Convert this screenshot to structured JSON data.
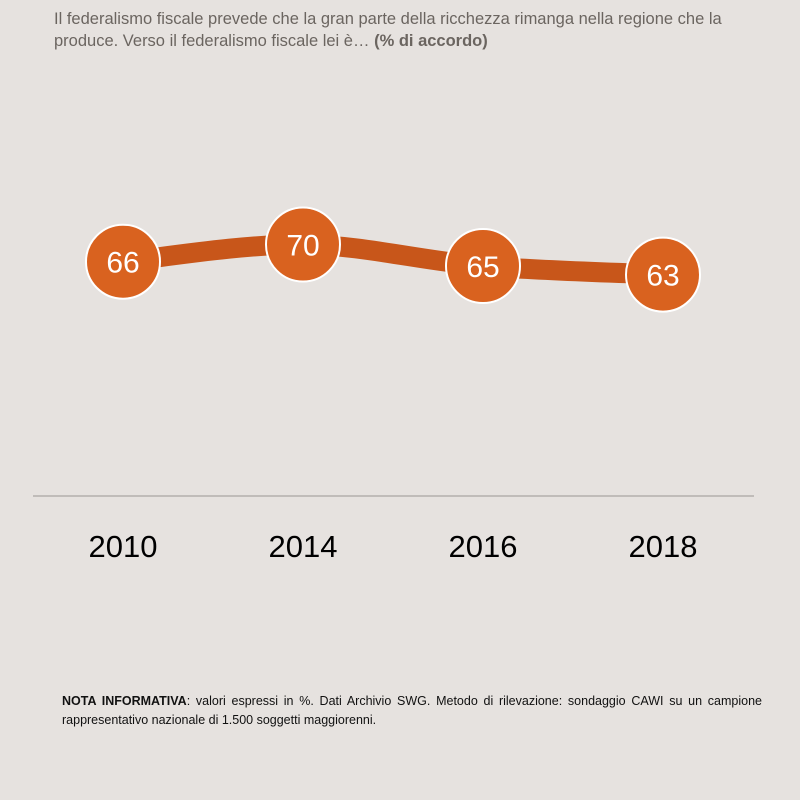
{
  "title": {
    "text": "Il federalismo fiscale prevede che la gran parte della ricchezza rimanga nella regione che la produce. Verso il federalismo fiscale lei è…",
    "emphasis": "(% di accordo)"
  },
  "chart_data": {
    "type": "line",
    "categories": [
      "2010",
      "2014",
      "2016",
      "2018"
    ],
    "values": [
      66,
      70,
      65,
      63
    ],
    "title": "Il federalismo fiscale prevede che la gran parte della ricchezza rimanga nella regione che la produce. Verso il federalismo fiscale lei è… (% di accordo)",
    "xlabel": "",
    "ylabel": "",
    "line_color": "#c8561a",
    "marker_color": "#d9621f",
    "marker_stroke": "#ffffff"
  },
  "note": {
    "label": "NOTA INFORMATIVA",
    "text": ": valori espressi in %. Dati Archivio SWG. Metodo di rilevazione: sondaggio CAWI su un campione rappresentativo nazionale di 1.500 soggetti maggiorenni."
  }
}
